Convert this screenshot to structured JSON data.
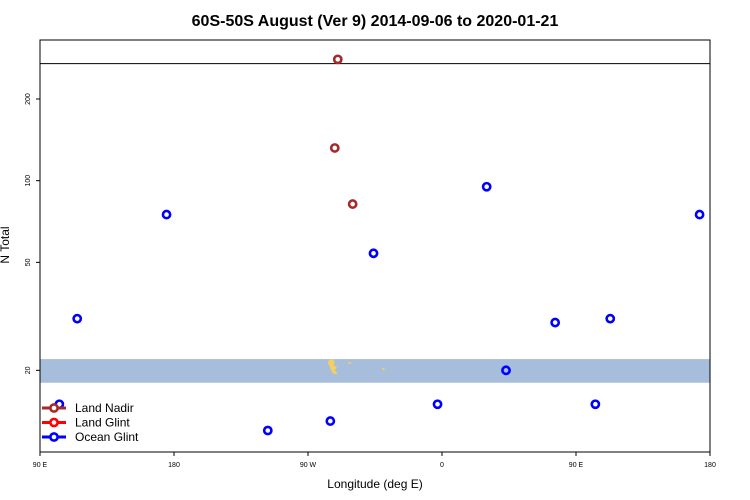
{
  "chart_data": {
    "type": "scatter",
    "title": "60S-50S August (Ver 9)   2014-09-06 to 2020-01-21",
    "xlabel": "Longitude (deg E)",
    "ylabel": "N Total",
    "x_ticks": [
      {
        "pos": 90,
        "label": "90 E"
      },
      {
        "pos": 180,
        "label": "180"
      },
      {
        "pos": 270,
        "label": "90 W"
      },
      {
        "pos": 360,
        "label": "0"
      },
      {
        "pos": 450,
        "label": "90 E"
      },
      {
        "pos": 540,
        "label": "180"
      }
    ],
    "y_ticks": [
      20,
      50,
      100,
      200
    ],
    "y_scale": "log",
    "xlim": [
      90,
      540
    ],
    "ylim": [
      10,
      330
    ],
    "top_panel_boundary": 270,
    "land_band": [
      18,
      22
    ],
    "colors": {
      "land_band": "#a6bddb",
      "land_mass": "#f4cf63",
      "land_nadir": "#a52a2a",
      "land_glint": "#ff0000",
      "ocean_glint": "#0000ff"
    },
    "series": [
      {
        "name": "Land Nadir",
        "color": "#a52a2a",
        "points": [
          [
            290,
            280
          ],
          [
            288,
            132
          ],
          [
            300,
            82
          ]
        ]
      },
      {
        "name": "Land Glint",
        "color": "#ff0000",
        "points": []
      },
      {
        "name": "Ocean Glint",
        "color": "#0000ff",
        "points": [
          [
            115,
            31
          ],
          [
            175,
            75
          ],
          [
            314,
            54
          ],
          [
            390,
            95
          ],
          [
            533,
            75
          ],
          [
            103,
            15
          ],
          [
            243,
            12
          ],
          [
            285,
            13
          ],
          [
            357,
            15
          ],
          [
            403,
            20
          ],
          [
            436,
            30
          ],
          [
            473,
            31
          ],
          [
            463,
            15
          ]
        ]
      }
    ]
  }
}
